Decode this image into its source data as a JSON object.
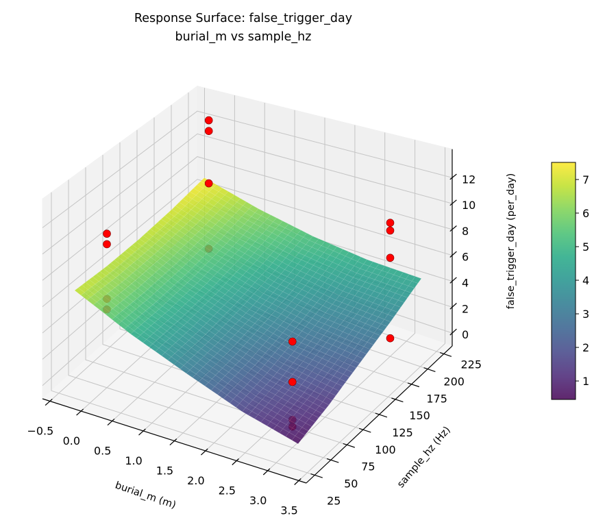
{
  "chart_data": {
    "type": "surface3d",
    "title": "Response Surface: false_trigger_day",
    "subtitle": "burial_m vs sample_hz",
    "xlabel": "burial_m (m)",
    "ylabel": "sample_hz (Hz)",
    "zlabel": "false_trigger_day (per_day)",
    "xlim": [
      -0.62,
      3.62
    ],
    "ylim": [
      12,
      238
    ],
    "zlim": [
      -1,
      14.2
    ],
    "xticks": [
      -0.5,
      0.0,
      0.5,
      1.0,
      1.5,
      2.0,
      2.5,
      3.0,
      3.5
    ],
    "xtick_labels": [
      "−0.5",
      "0.0",
      "0.5",
      "1.0",
      "1.5",
      "2.0",
      "2.5",
      "3.0",
      "3.5"
    ],
    "yticks": [
      25,
      50,
      75,
      100,
      125,
      150,
      175,
      200,
      225
    ],
    "ytick_labels": [
      "25",
      "50",
      "75",
      "100",
      "125",
      "150",
      "175",
      "200",
      "225"
    ],
    "zticks": [
      0,
      2,
      4,
      6,
      8,
      10,
      12
    ],
    "ztick_labels": [
      "0",
      "2",
      "4",
      "6",
      "8",
      "10",
      "12"
    ],
    "grid": true,
    "colormap": "viridis",
    "surface": {
      "x": [
        -0.3,
        0.6,
        1.5,
        2.4,
        3.3
      ],
      "y": [
        30,
        77.5,
        125,
        172.5,
        220
      ],
      "z": [
        [
          6.9,
          6.75,
          6.8,
          7.05,
          7.5
        ],
        [
          4.83,
          4.88,
          5.12,
          5.57,
          6.21
        ],
        [
          3.14,
          3.38,
          3.81,
          4.45,
          5.29
        ],
        [
          1.6,
          2.1,
          2.87,
          3.7,
          4.73
        ],
        [
          0.55,
          1.3,
          2.3,
          3.33,
          4.55
        ]
      ],
      "alpha": 0.85
    },
    "scatter": {
      "color": "#ff0000",
      "points": [
        {
          "x": 0,
          "y": 50,
          "z": 10.8
        },
        {
          "x": 0,
          "y": 50,
          "z": 10.0
        },
        {
          "x": 0,
          "y": 50,
          "z": 5.8
        },
        {
          "x": 0,
          "y": 50,
          "z": 5.0
        },
        {
          "x": 0,
          "y": 200,
          "z": 13.7
        },
        {
          "x": 0,
          "y": 200,
          "z": 12.8
        },
        {
          "x": 0,
          "y": 200,
          "z": 8.4
        },
        {
          "x": 0,
          "y": 200,
          "z": 2.9
        },
        {
          "x": 3,
          "y": 200,
          "z": 9.3
        },
        {
          "x": 3,
          "y": 200,
          "z": 8.7
        },
        {
          "x": 3,
          "y": 200,
          "z": 6.6
        },
        {
          "x": 3,
          "y": 200,
          "z": 0.4
        },
        {
          "x": 3,
          "y": 50,
          "z": 6.6
        },
        {
          "x": 3,
          "y": 50,
          "z": 3.7
        },
        {
          "x": 3,
          "y": 50,
          "z": 1.0
        },
        {
          "x": 3,
          "y": 50,
          "z": 0.5
        }
      ]
    },
    "colorbar": {
      "range": [
        0.45,
        7.51
      ],
      "ticks": [
        1,
        2,
        3,
        4,
        5,
        6,
        7
      ],
      "tick_labels": [
        "1",
        "2",
        "3",
        "4",
        "5",
        "6",
        "7"
      ]
    }
  }
}
